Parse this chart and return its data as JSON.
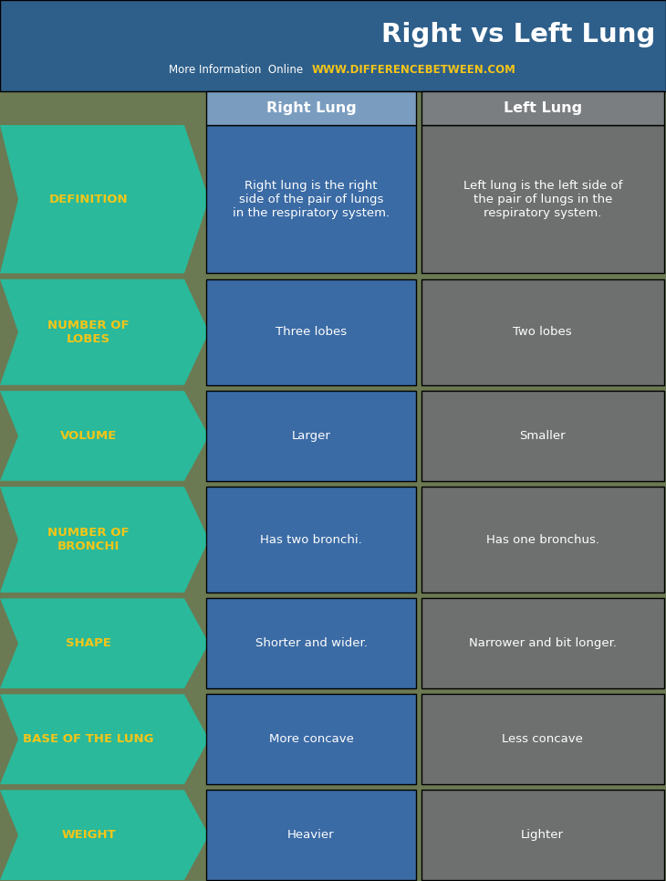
{
  "title": "Right vs Left Lung",
  "subtitle_left": "More Information  Online  ",
  "subtitle_right": "WWW.DIFFERENCEBETWEEN.COM",
  "col1_header": "Right Lung",
  "col2_header": "Left Lung",
  "rows": [
    {
      "label": "DEFINITION",
      "right": "Right lung is the right\nside of the pair of lungs\nin the respiratory system.",
      "left": "Left lung is the left side of\nthe pair of lungs in the\nrespiratory system."
    },
    {
      "label": "NUMBER OF\nLOBES",
      "right": "Three lobes",
      "left": "Two lobes"
    },
    {
      "label": "VOLUME",
      "right": "Larger",
      "left": "Smaller"
    },
    {
      "label": "NUMBER OF\nBRONCHI",
      "right": "Has two bronchi.",
      "left": "Has one bronchus."
    },
    {
      "label": "SHAPE",
      "right": "Shorter and wider.",
      "left": "Narrower and bit longer."
    },
    {
      "label": "BASE OF THE LUNG",
      "right": "More concave",
      "left": "Less concave"
    },
    {
      "label": "WEIGHT",
      "right": "Heavier",
      "left": "Lighter"
    }
  ],
  "colors": {
    "header_bg": "#2e5f8a",
    "teal": "#2ab99a",
    "blue_cell": "#3b6ba5",
    "gray_cell": "#6e7070",
    "col1_header_bg": "#7a9dbf",
    "col2_header_bg": "#7a7e80",
    "label_text": "#f5c518",
    "url_text": "#f5c518",
    "bg_nature": "#6b7a52"
  },
  "fig_width": 7.3,
  "fig_height": 9.65,
  "dpi": 100
}
